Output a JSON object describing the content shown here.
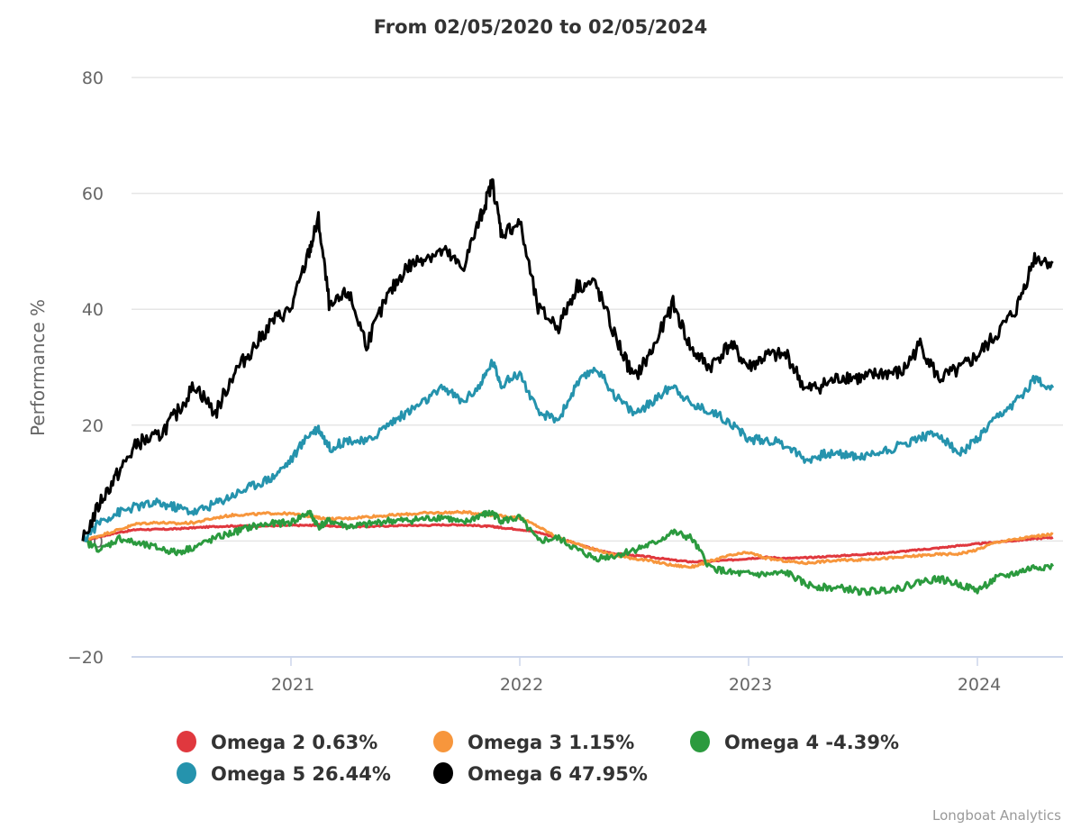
{
  "chart_data": {
    "type": "line",
    "title": "From 02/05/2020 to 02/05/2024",
    "xlabel": "",
    "ylabel": "Performance %",
    "ylim": [
      -20,
      80
    ],
    "yticks": [
      -20,
      0,
      20,
      40,
      60,
      80
    ],
    "xlim": [
      2020.09,
      2024.33
    ],
    "xticks": [
      {
        "value": 2021,
        "label": "2021"
      },
      {
        "value": 2022,
        "label": "2022"
      },
      {
        "value": 2023,
        "label": "2023"
      },
      {
        "value": 2024,
        "label": "2024"
      }
    ],
    "grid": true,
    "legend_position": "bottom",
    "credit": "Longboat Analytics",
    "x": [
      2020.09,
      2020.17,
      2020.25,
      2020.33,
      2020.42,
      2020.5,
      2020.58,
      2020.67,
      2020.75,
      2020.83,
      2020.92,
      2021.0,
      2021.08,
      2021.12,
      2021.17,
      2021.25,
      2021.33,
      2021.42,
      2021.5,
      2021.58,
      2021.67,
      2021.75,
      2021.83,
      2021.88,
      2021.92,
      2022.0,
      2022.08,
      2022.17,
      2022.25,
      2022.33,
      2022.42,
      2022.5,
      2022.58,
      2022.67,
      2022.75,
      2022.83,
      2022.92,
      2023.0,
      2023.08,
      2023.17,
      2023.25,
      2023.33,
      2023.42,
      2023.5,
      2023.58,
      2023.67,
      2023.75,
      2023.83,
      2023.92,
      2024.0,
      2024.08,
      2024.17,
      2024.25,
      2024.33
    ],
    "series": [
      {
        "name": "Omega 2",
        "legend_label": "Omega 2 0.63%",
        "color": "#e0383e",
        "values": [
          0,
          0.8,
          1.5,
          2.0,
          2.0,
          2.1,
          2.3,
          2.5,
          2.6,
          2.6,
          2.6,
          2.7,
          2.7,
          2.8,
          2.6,
          2.5,
          2.5,
          2.6,
          2.7,
          2.7,
          2.8,
          2.8,
          2.6,
          2.5,
          2.3,
          2.0,
          1.5,
          0.5,
          -0.5,
          -1.5,
          -2.2,
          -2.5,
          -2.8,
          -3.3,
          -3.6,
          -3.5,
          -3.3,
          -3.0,
          -2.8,
          -3.0,
          -2.9,
          -2.7,
          -2.5,
          -2.3,
          -2.1,
          -1.8,
          -1.5,
          -1.2,
          -0.8,
          -0.5,
          -0.2,
          0.1,
          0.4,
          0.63
        ]
      },
      {
        "name": "Omega 3",
        "legend_label": "Omega 3 1.15%",
        "color": "#f7963c",
        "values": [
          0,
          1.0,
          2.0,
          3.0,
          3.2,
          3.0,
          3.2,
          4.0,
          4.5,
          4.6,
          4.8,
          4.7,
          4.3,
          4.0,
          3.8,
          3.9,
          4.2,
          4.4,
          4.6,
          4.8,
          4.9,
          5.0,
          4.7,
          4.5,
          4.3,
          4.0,
          2.5,
          0.5,
          -0.5,
          -1.5,
          -2.5,
          -3.0,
          -3.5,
          -4.2,
          -4.5,
          -3.5,
          -2.5,
          -2.0,
          -3.0,
          -3.5,
          -3.8,
          -3.5,
          -3.3,
          -3.2,
          -3.0,
          -2.8,
          -2.5,
          -2.3,
          -2.2,
          -1.5,
          -0.2,
          0.3,
          0.8,
          1.15
        ]
      },
      {
        "name": "Omega 4",
        "legend_label": "Omega 4 -4.39%",
        "color": "#2b9a3e",
        "values": [
          0,
          -1.5,
          0.5,
          -0.5,
          -1.2,
          -2.0,
          -1.0,
          0.5,
          1.5,
          2.5,
          3.0,
          3.2,
          5.0,
          2.5,
          3.5,
          2.5,
          2.8,
          3.5,
          3.5,
          3.8,
          4.2,
          3.0,
          4.5,
          4.8,
          3.5,
          4.0,
          0.0,
          0.5,
          -1.5,
          -3.0,
          -2.5,
          -1.5,
          -0.5,
          1.5,
          0.5,
          -4.5,
          -5.5,
          -5.7,
          -5.8,
          -5.5,
          -7.5,
          -8.0,
          -8.2,
          -8.8,
          -8.5,
          -8.0,
          -7.0,
          -6.5,
          -7.5,
          -8.5,
          -6.5,
          -5.5,
          -4.5,
          -4.39
        ]
      },
      {
        "name": "Omega 5",
        "legend_label": "Omega 5 26.44%",
        "color": "#2593ad",
        "values": [
          0,
          3.5,
          5.0,
          6.0,
          6.5,
          5.8,
          5.0,
          6.5,
          8.0,
          9.5,
          11.0,
          14.0,
          18.5,
          19.5,
          16.0,
          17.5,
          17.0,
          20.0,
          22.0,
          24.0,
          26.5,
          24.0,
          27.0,
          31.0,
          27.0,
          29.0,
          22.0,
          21.0,
          27.0,
          30.0,
          25.0,
          22.0,
          24.0,
          27.0,
          23.5,
          22.5,
          20.5,
          17.5,
          17.5,
          16.5,
          14.0,
          15.0,
          15.0,
          14.5,
          15.5,
          16.5,
          18.0,
          18.5,
          15.0,
          17.5,
          21.0,
          24.0,
          28.0,
          26.44
        ]
      },
      {
        "name": "Omega 6",
        "legend_label": "Omega 6 47.95%",
        "color": "#000000",
        "values": [
          0,
          7.0,
          12.0,
          17.0,
          18.0,
          22.0,
          27.0,
          22.0,
          29.0,
          33.0,
          38.0,
          40.0,
          50.0,
          55.5,
          40.0,
          43.0,
          34.0,
          42.0,
          47.0,
          49.0,
          50.0,
          47.0,
          56.0,
          62.0,
          53.0,
          55.0,
          40.0,
          37.0,
          44.0,
          44.5,
          35.0,
          28.0,
          33.0,
          41.0,
          33.0,
          30.0,
          34.0,
          30.0,
          32.0,
          32.0,
          26.0,
          27.0,
          28.5,
          28.0,
          29.0,
          29.0,
          34.0,
          28.0,
          29.5,
          32.0,
          35.5,
          40.0,
          49.0,
          47.95
        ]
      }
    ]
  }
}
